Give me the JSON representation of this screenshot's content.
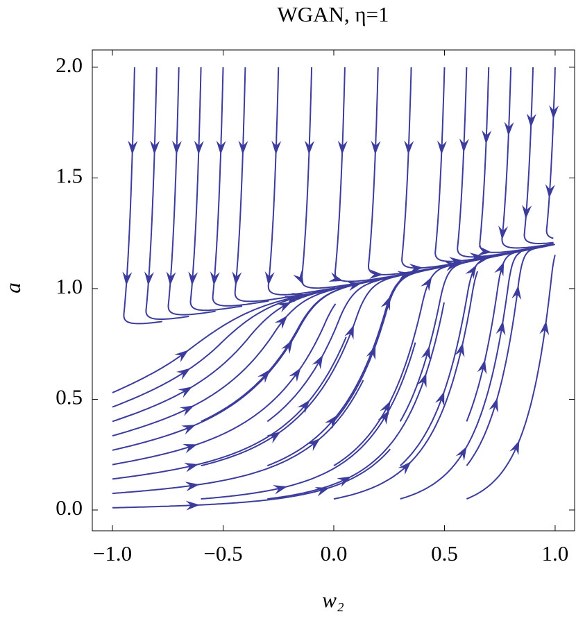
{
  "chart_data": {
    "type": "stream",
    "title": "WGAN, η=1",
    "x_label": "w₂",
    "y_label": "a",
    "xlim": [
      -1.091,
      1.088
    ],
    "ylim": [
      -0.094,
      2.078
    ],
    "xticks": [
      {
        "value": -1,
        "label": "−1.0"
      },
      {
        "value": -0.5,
        "label": "−0.5"
      },
      {
        "value": 0,
        "label": "0.0"
      },
      0.5,
      {
        "value": 1,
        "label": "1.0"
      }
    ],
    "yticks": [
      {
        "value": 0,
        "label": "0.0"
      },
      0.5,
      {
        "value": 1,
        "label": "1.0"
      },
      1.5,
      {
        "value": 2,
        "label": "2.0"
      }
    ],
    "color": "#3c3c9c"
  }
}
